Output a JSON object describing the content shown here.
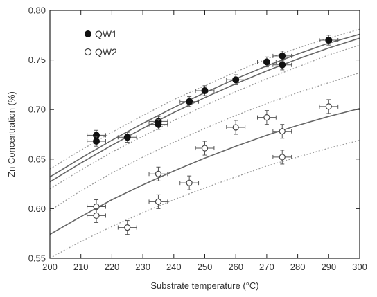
{
  "chart_data": {
    "type": "scatter",
    "xlabel": "Substrate temperature (°C)",
    "ylabel": "Zn Concentration (%)",
    "xlim": [
      200,
      300
    ],
    "ylim": [
      0.55,
      0.8
    ],
    "x_ticks": [
      200,
      210,
      220,
      230,
      240,
      250,
      260,
      270,
      280,
      290,
      300
    ],
    "y_ticks": [
      0.55,
      0.6,
      0.65,
      0.7,
      0.75,
      0.8
    ],
    "x_tick_labels": [
      "200",
      "210",
      "220",
      "230",
      "240",
      "250",
      "260",
      "270",
      "280",
      "290",
      "300"
    ],
    "y_tick_labels": [
      "0.55",
      "0.60",
      "0.65",
      "0.70",
      "0.75",
      "0.80"
    ],
    "legend_position": "top-left",
    "grid": false,
    "series": [
      {
        "name": "QW1",
        "marker": "filled-circle",
        "color": "#111111",
        "points": [
          {
            "x": 215,
            "y": 0.674,
            "xerr": 3,
            "yerr": 0.005
          },
          {
            "x": 215,
            "y": 0.668,
            "xerr": 3,
            "yerr": 0.005
          },
          {
            "x": 225,
            "y": 0.672,
            "xerr": 3,
            "yerr": 0.005
          },
          {
            "x": 235,
            "y": 0.688,
            "xerr": 3,
            "yerr": 0.005
          },
          {
            "x": 235,
            "y": 0.685,
            "xerr": 3,
            "yerr": 0.005
          },
          {
            "x": 245,
            "y": 0.708,
            "xerr": 3,
            "yerr": 0.005
          },
          {
            "x": 250,
            "y": 0.719,
            "xerr": 3,
            "yerr": 0.005
          },
          {
            "x": 260,
            "y": 0.73,
            "xerr": 3,
            "yerr": 0.005
          },
          {
            "x": 270,
            "y": 0.748,
            "xerr": 3,
            "yerr": 0.005
          },
          {
            "x": 275,
            "y": 0.754,
            "xerr": 3,
            "yerr": 0.005
          },
          {
            "x": 275,
            "y": 0.745,
            "xerr": 3,
            "yerr": 0.005
          },
          {
            "x": 290,
            "y": 0.77,
            "xerr": 3,
            "yerr": 0.005
          }
        ]
      },
      {
        "name": "QW2",
        "marker": "open-circle",
        "color": "#444444",
        "points": [
          {
            "x": 215,
            "y": 0.602,
            "xerr": 3,
            "yerr": 0.007
          },
          {
            "x": 215,
            "y": 0.593,
            "xerr": 3,
            "yerr": 0.007
          },
          {
            "x": 225,
            "y": 0.581,
            "xerr": 3,
            "yerr": 0.007
          },
          {
            "x": 235,
            "y": 0.635,
            "xerr": 3,
            "yerr": 0.007
          },
          {
            "x": 235,
            "y": 0.607,
            "xerr": 3,
            "yerr": 0.007
          },
          {
            "x": 245,
            "y": 0.626,
            "xerr": 3,
            "yerr": 0.007
          },
          {
            "x": 250,
            "y": 0.661,
            "xerr": 3,
            "yerr": 0.007
          },
          {
            "x": 260,
            "y": 0.682,
            "xerr": 3,
            "yerr": 0.007
          },
          {
            "x": 270,
            "y": 0.692,
            "xerr": 3,
            "yerr": 0.007
          },
          {
            "x": 275,
            "y": 0.678,
            "xerr": 3,
            "yerr": 0.007
          },
          {
            "x": 275,
            "y": 0.652,
            "xerr": 3,
            "yerr": 0.007
          },
          {
            "x": 290,
            "y": 0.703,
            "xerr": 3,
            "yerr": 0.007
          }
        ]
      }
    ],
    "fits": [
      {
        "style": "solid",
        "color": "#666666",
        "x": [
          200,
          210,
          220,
          230,
          240,
          250,
          260,
          270,
          280,
          290,
          300
        ],
        "y": [
          0.627,
          0.646,
          0.664,
          0.681,
          0.697,
          0.712,
          0.726,
          0.739,
          0.751,
          0.762,
          0.772
        ]
      },
      {
        "style": "solid",
        "color": "#666666",
        "x": [
          200,
          210,
          220,
          230,
          240,
          250,
          260,
          270,
          280,
          290,
          300
        ],
        "y": [
          0.632,
          0.651,
          0.669,
          0.686,
          0.702,
          0.717,
          0.731,
          0.744,
          0.756,
          0.767,
          0.776
        ]
      },
      {
        "style": "dotted",
        "color": "#999999",
        "x": [
          200,
          210,
          220,
          230,
          240,
          250,
          260,
          270,
          280,
          290,
          300
        ],
        "y": [
          0.64,
          0.659,
          0.677,
          0.694,
          0.71,
          0.724,
          0.738,
          0.751,
          0.762,
          0.772,
          0.781
        ]
      },
      {
        "style": "dotted",
        "color": "#999999",
        "x": [
          200,
          210,
          220,
          230,
          240,
          250,
          260,
          270,
          280,
          290,
          300
        ],
        "y": [
          0.62,
          0.639,
          0.657,
          0.673,
          0.689,
          0.704,
          0.718,
          0.731,
          0.743,
          0.755,
          0.765
        ]
      },
      {
        "style": "solid",
        "color": "#666666",
        "x": [
          200,
          210,
          220,
          230,
          240,
          250,
          260,
          270,
          280,
          290,
          300
        ],
        "y": [
          0.574,
          0.592,
          0.609,
          0.624,
          0.638,
          0.651,
          0.663,
          0.674,
          0.684,
          0.693,
          0.701
        ]
      },
      {
        "style": "dotted",
        "color": "#999999",
        "x": [
          200,
          210,
          220,
          230,
          240,
          250,
          260,
          270,
          280,
          290,
          300
        ],
        "y": [
          0.598,
          0.618,
          0.636,
          0.652,
          0.667,
          0.681,
          0.694,
          0.706,
          0.717,
          0.727,
          0.737
        ]
      },
      {
        "style": "dotted",
        "color": "#999999",
        "x": [
          200,
          210,
          220,
          230,
          240,
          250,
          260,
          270,
          280,
          290,
          300
        ],
        "y": [
          0.55,
          0.567,
          0.582,
          0.596,
          0.609,
          0.621,
          0.632,
          0.643,
          0.652,
          0.661,
          0.669
        ]
      }
    ]
  }
}
